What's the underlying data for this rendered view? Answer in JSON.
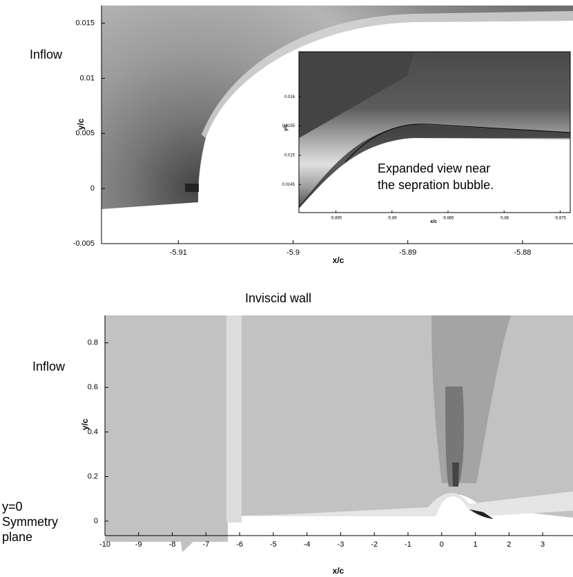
{
  "chart_data": [
    {
      "type": "contour",
      "x_label": "x/c",
      "y_label": "y/c",
      "xlim": [
        -5.9167,
        -5.8756
      ],
      "ylim": [
        -0.005,
        0.0166
      ],
      "xticks": [
        -5.91,
        -5.9,
        -5.89,
        -5.88
      ],
      "yticks": [
        -0.005,
        0,
        0.005,
        0.01,
        0.015
      ],
      "annotations": [
        "Inflow",
        "Expanded view near",
        "the sepration bubble."
      ]
    },
    {
      "type": "contour",
      "x_label": "x/c",
      "y_label": "y/c",
      "xlim": [
        -5.8983,
        -5.8741
      ],
      "ylim": [
        0.01402,
        0.01677
      ],
      "xticks": [
        -5.895,
        -5.89,
        -5.885,
        -5.88,
        -5.875
      ],
      "yticks": [
        0.0145,
        0.015,
        0.0155,
        0.016
      ]
    },
    {
      "type": "contour",
      "x_label": "x/c",
      "y_label": "y/c",
      "xlim": [
        -10,
        3.9
      ],
      "ylim": [
        -0.065,
        0.923
      ],
      "xticks": [
        -10,
        -9,
        -8,
        -7,
        -6,
        -5,
        -4,
        -3,
        -2,
        -1,
        0,
        1,
        2,
        3
      ],
      "yticks": [
        0,
        0.2,
        0.4,
        0.6,
        0.8
      ],
      "annotations": [
        "Inviscid wall",
        "Inflow",
        "y=0",
        "Symmetry",
        "plane"
      ]
    }
  ]
}
